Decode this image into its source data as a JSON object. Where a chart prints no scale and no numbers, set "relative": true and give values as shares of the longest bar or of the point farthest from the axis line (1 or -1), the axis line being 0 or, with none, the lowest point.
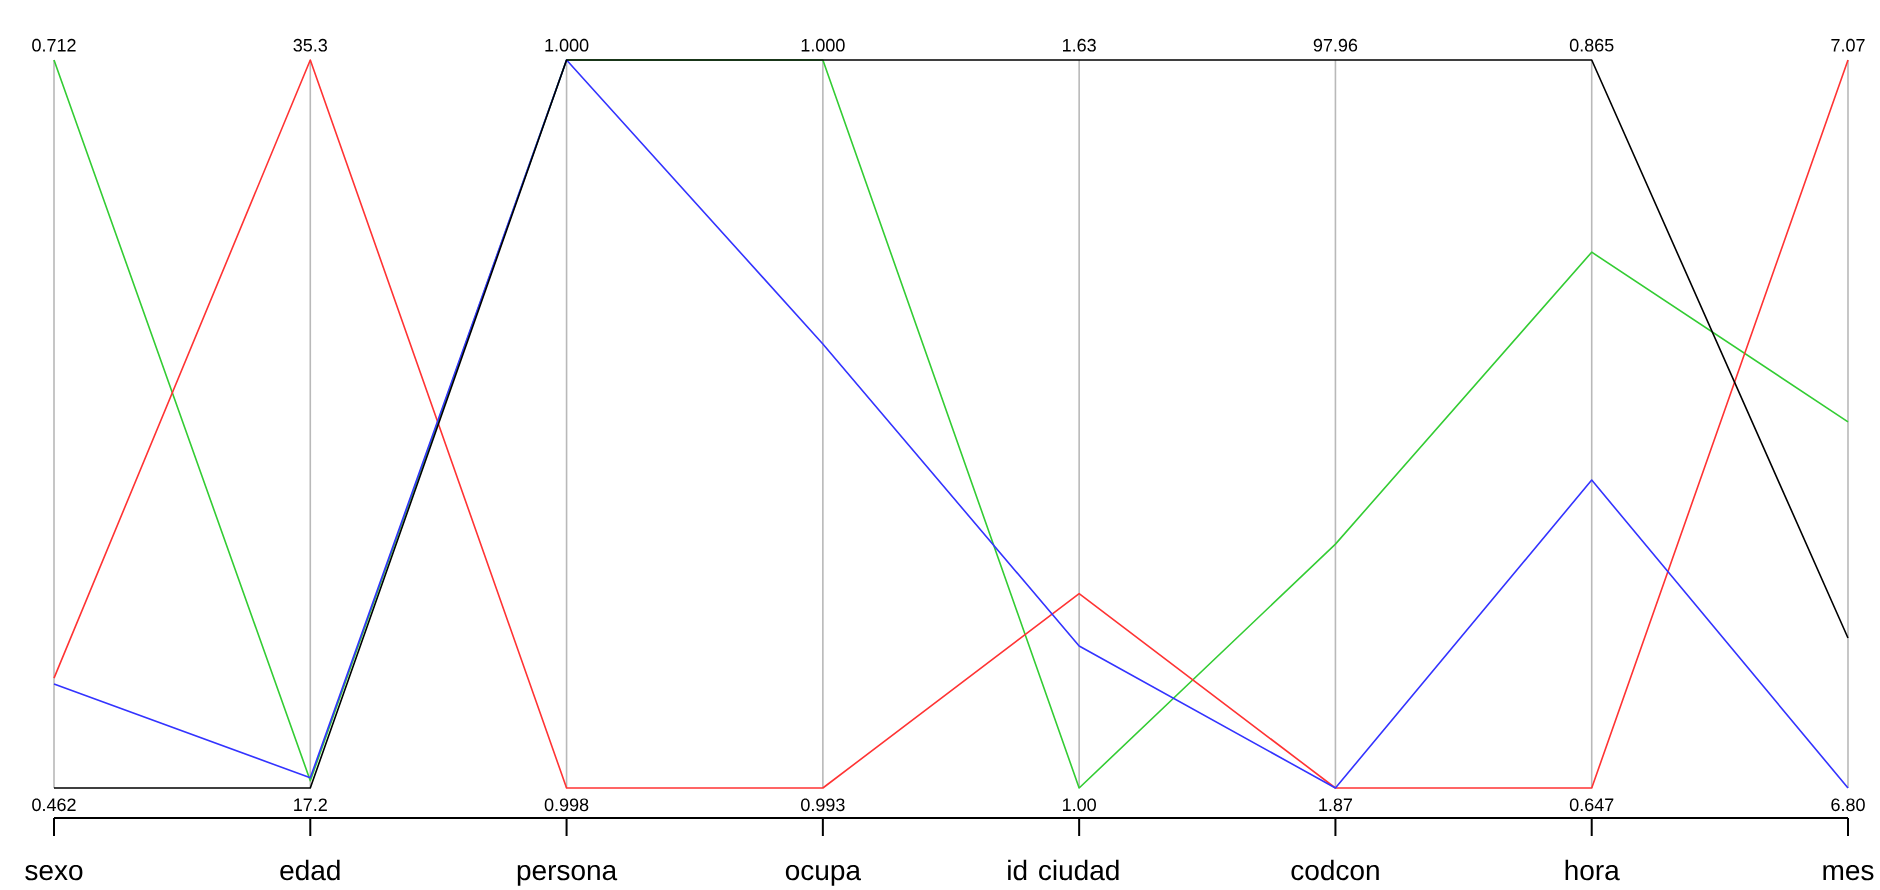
{
  "chart_data": {
    "type": "line",
    "relative": true,
    "grid": "x",
    "marker": "none",
    "line_style": "solid",
    "categories": [
      "sexo",
      "edad",
      "persona",
      "ocupa",
      "ciudad",
      "codcon",
      "hora",
      "mes"
    ],
    "series": [
      {
        "color": "#33cc33",
        "values": [
          1,
          0.01,
          1,
          1,
          0,
          0.335,
          0.736,
          0.503
        ]
      },
      {
        "color": "#ff3333",
        "values": [
          0.151,
          1,
          0,
          0,
          0.267,
          0,
          0,
          1
        ]
      },
      {
        "color": "#3333ff",
        "values": [
          0.143,
          0.014,
          1,
          0.61,
          0.195,
          0,
          0.423,
          0
        ]
      },
      {
        "color": "#000000",
        "values": [
          0,
          0,
          1,
          1,
          1,
          1,
          1,
          0.206
        ]
      }
    ],
    "annotations": [
      "0.712",
      "35.3",
      "1.000",
      "1.000",
      "1.63",
      "97.96",
      "0.865",
      "7.07",
      "0.462",
      "17.2",
      "0.998",
      "0.993",
      "1.00",
      "1.87",
      "0.647",
      "6.80",
      "id"
    ]
  }
}
